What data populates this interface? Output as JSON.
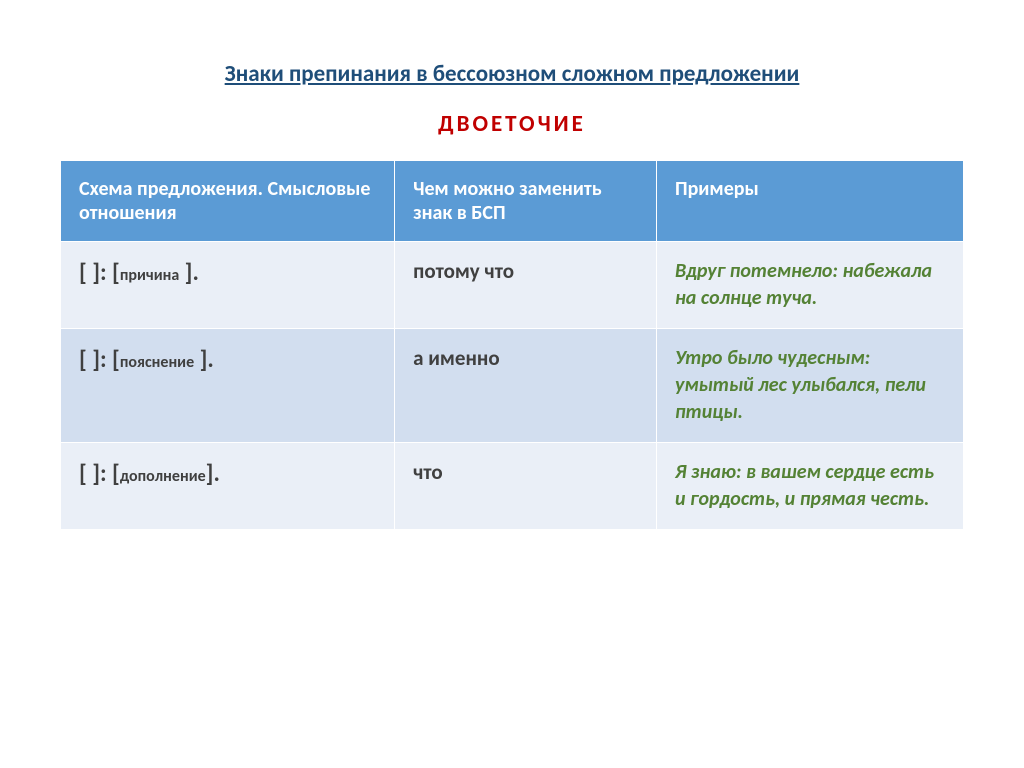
{
  "title": {
    "text": "Знаки препинания в бессоюзном сложном предложении",
    "color": "#1f4e79"
  },
  "subtitle": {
    "text": "ДВОЕТОЧИЕ",
    "color": "#c00000"
  },
  "table": {
    "header_bg": "#5b9bd5",
    "header_text_color": "#ffffff",
    "row_alt_bg_1": "#eaeff7",
    "row_alt_bg_2": "#d2deef",
    "border_color": "#ffffff",
    "schema_text_color": "#404040",
    "replace_text_color": "#404040",
    "example_text_color": "#548235",
    "headers": {
      "c1": "Схема предложения. Смысловые отношения",
      "c2": "Чем можно заменить знак в БСП",
      "c3": "Примеры"
    },
    "rows": [
      {
        "schema_prefix": "[ ]: [",
        "relation": "причина",
        "schema_suffix": " ].",
        "replace": "потому что",
        "example": "Вдруг потемнело: набежала на солнце туча."
      },
      {
        "schema_prefix": "[ ]: [",
        "relation": "пояснение",
        "schema_suffix": " ].",
        "replace": "а именно",
        "example": "Утро было чудесным: умытый лес улыбался, пели птицы."
      },
      {
        "schema_prefix": "[ ]: [",
        "relation": "дополнение",
        "schema_suffix": "].",
        "replace": "что",
        "example": "Я знаю: в вашем сердце есть и гордость, и прямая честь."
      }
    ]
  }
}
